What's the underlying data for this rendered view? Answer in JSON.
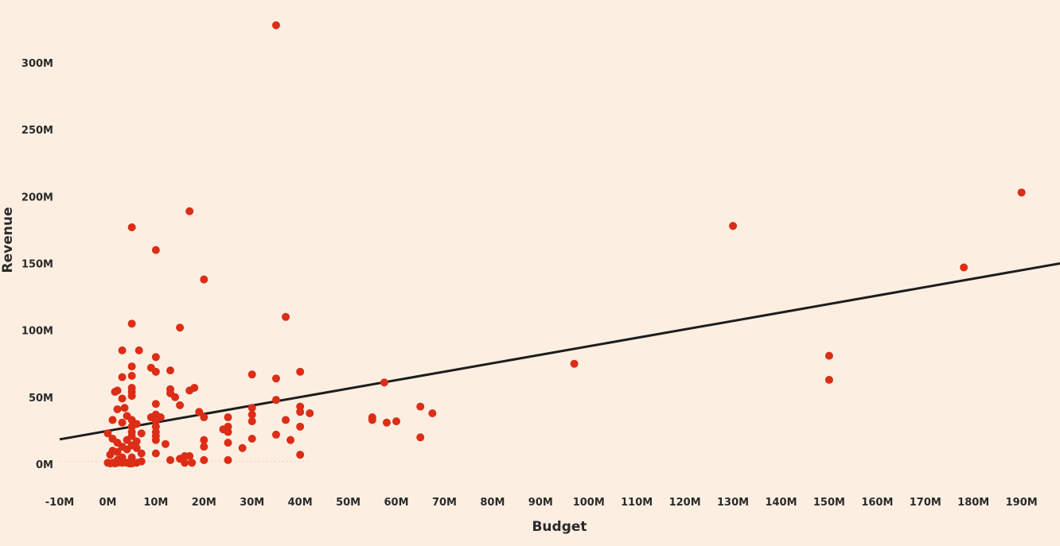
{
  "chart_data": {
    "type": "scatter",
    "title": "",
    "xlabel": "Budget",
    "ylabel": "Revenue",
    "xlim": [
      -10,
      198
    ],
    "ylim": [
      -22,
      335
    ],
    "x_ticks": [
      -10,
      0,
      10,
      20,
      30,
      40,
      50,
      60,
      70,
      80,
      90,
      100,
      110,
      120,
      130,
      140,
      150,
      160,
      170,
      180,
      190
    ],
    "x_tick_labels": [
      "-10M",
      "0M",
      "10M",
      "20M",
      "30M",
      "40M",
      "50M",
      "60M",
      "70M",
      "80M",
      "90M",
      "100M",
      "110M",
      "120M",
      "130M",
      "140M",
      "150M",
      "160M",
      "170M",
      "180M",
      "190M"
    ],
    "y_ticks": [
      0,
      50,
      100,
      150,
      200,
      250,
      300
    ],
    "y_tick_labels": [
      "0M",
      "50M",
      "100M",
      "150M",
      "200M",
      "250M",
      "300M"
    ],
    "units": "millions (M)",
    "point_color": "#dc2d16",
    "line_color": "#1d1d1d",
    "background": "#fcefe2",
    "grid": false,
    "trend_line": {
      "x": [
        -10,
        198
      ],
      "y": [
        18.5,
        150
      ]
    },
    "points": [
      [
        35,
        328
      ],
      [
        190,
        203
      ],
      [
        17,
        189
      ],
      [
        130,
        178
      ],
      [
        5,
        177
      ],
      [
        178,
        147
      ],
      [
        10,
        160
      ],
      [
        20,
        138
      ],
      [
        37,
        110
      ],
      [
        5,
        105
      ],
      [
        15,
        102
      ],
      [
        97,
        75
      ],
      [
        150,
        81
      ],
      [
        150,
        63
      ],
      [
        3,
        85
      ],
      [
        6.5,
        85
      ],
      [
        10,
        80
      ],
      [
        5,
        73
      ],
      [
        9,
        72
      ],
      [
        13,
        70
      ],
      [
        10,
        69
      ],
      [
        30,
        67
      ],
      [
        40,
        69
      ],
      [
        3,
        65
      ],
      [
        5,
        66
      ],
      [
        35,
        64
      ],
      [
        57.5,
        61
      ],
      [
        5,
        57
      ],
      [
        17,
        55
      ],
      [
        18,
        57
      ],
      [
        13,
        56
      ],
      [
        13,
        53
      ],
      [
        1.5,
        54
      ],
      [
        2,
        55
      ],
      [
        5,
        54
      ],
      [
        3,
        49
      ],
      [
        5,
        51
      ],
      [
        14,
        50
      ],
      [
        35,
        48
      ],
      [
        10,
        45
      ],
      [
        15,
        44
      ],
      [
        2,
        41
      ],
      [
        3.5,
        42
      ],
      [
        30,
        42
      ],
      [
        40,
        43
      ],
      [
        65,
        43
      ],
      [
        19,
        39
      ],
      [
        40,
        39
      ],
      [
        42,
        38
      ],
      [
        67.5,
        38
      ],
      [
        4,
        36
      ],
      [
        9,
        35
      ],
      [
        10,
        37
      ],
      [
        11,
        35
      ],
      [
        20,
        35
      ],
      [
        25,
        35
      ],
      [
        30,
        37
      ],
      [
        55,
        35
      ],
      [
        55,
        33
      ],
      [
        1,
        33
      ],
      [
        5,
        33
      ],
      [
        10,
        32
      ],
      [
        30,
        32
      ],
      [
        37,
        33
      ],
      [
        58,
        31
      ],
      [
        60,
        32
      ],
      [
        3,
        31
      ],
      [
        6,
        30
      ],
      [
        5,
        28
      ],
      [
        10,
        28
      ],
      [
        25,
        28
      ],
      [
        40,
        28
      ],
      [
        24,
        26
      ],
      [
        0,
        23
      ],
      [
        5,
        24
      ],
      [
        10,
        24
      ],
      [
        7,
        23
      ],
      [
        25,
        24
      ],
      [
        35,
        22
      ],
      [
        5,
        21
      ],
      [
        10,
        21
      ],
      [
        1,
        19
      ],
      [
        4,
        18
      ],
      [
        20,
        18
      ],
      [
        30,
        19
      ],
      [
        38,
        18
      ],
      [
        65,
        20
      ],
      [
        2,
        16
      ],
      [
        6,
        17
      ],
      [
        10,
        18
      ],
      [
        12,
        15
      ],
      [
        20,
        13
      ],
      [
        25,
        16
      ],
      [
        28,
        12
      ],
      [
        3,
        13
      ],
      [
        5,
        14
      ],
      [
        6,
        12
      ],
      [
        1,
        10
      ],
      [
        2,
        9
      ],
      [
        4,
        11
      ],
      [
        10,
        8
      ],
      [
        0.5,
        7
      ],
      [
        7,
        8
      ],
      [
        40,
        7
      ],
      [
        16,
        6
      ],
      [
        17,
        6
      ],
      [
        3,
        5
      ],
      [
        5,
        5
      ],
      [
        15,
        4
      ],
      [
        2,
        3
      ],
      [
        13,
        3
      ],
      [
        20,
        3
      ],
      [
        25,
        3
      ],
      [
        0,
        1
      ],
      [
        1,
        1
      ],
      [
        2,
        1
      ],
      [
        3,
        1
      ],
      [
        4,
        1
      ],
      [
        5,
        1
      ],
      [
        6,
        1
      ],
      [
        7,
        2
      ],
      [
        16,
        1
      ],
      [
        17.5,
        1
      ],
      [
        0.5,
        0.5
      ],
      [
        1.5,
        0.5
      ],
      [
        4.5,
        0.5
      ],
      [
        5,
        0.5
      ]
    ]
  }
}
